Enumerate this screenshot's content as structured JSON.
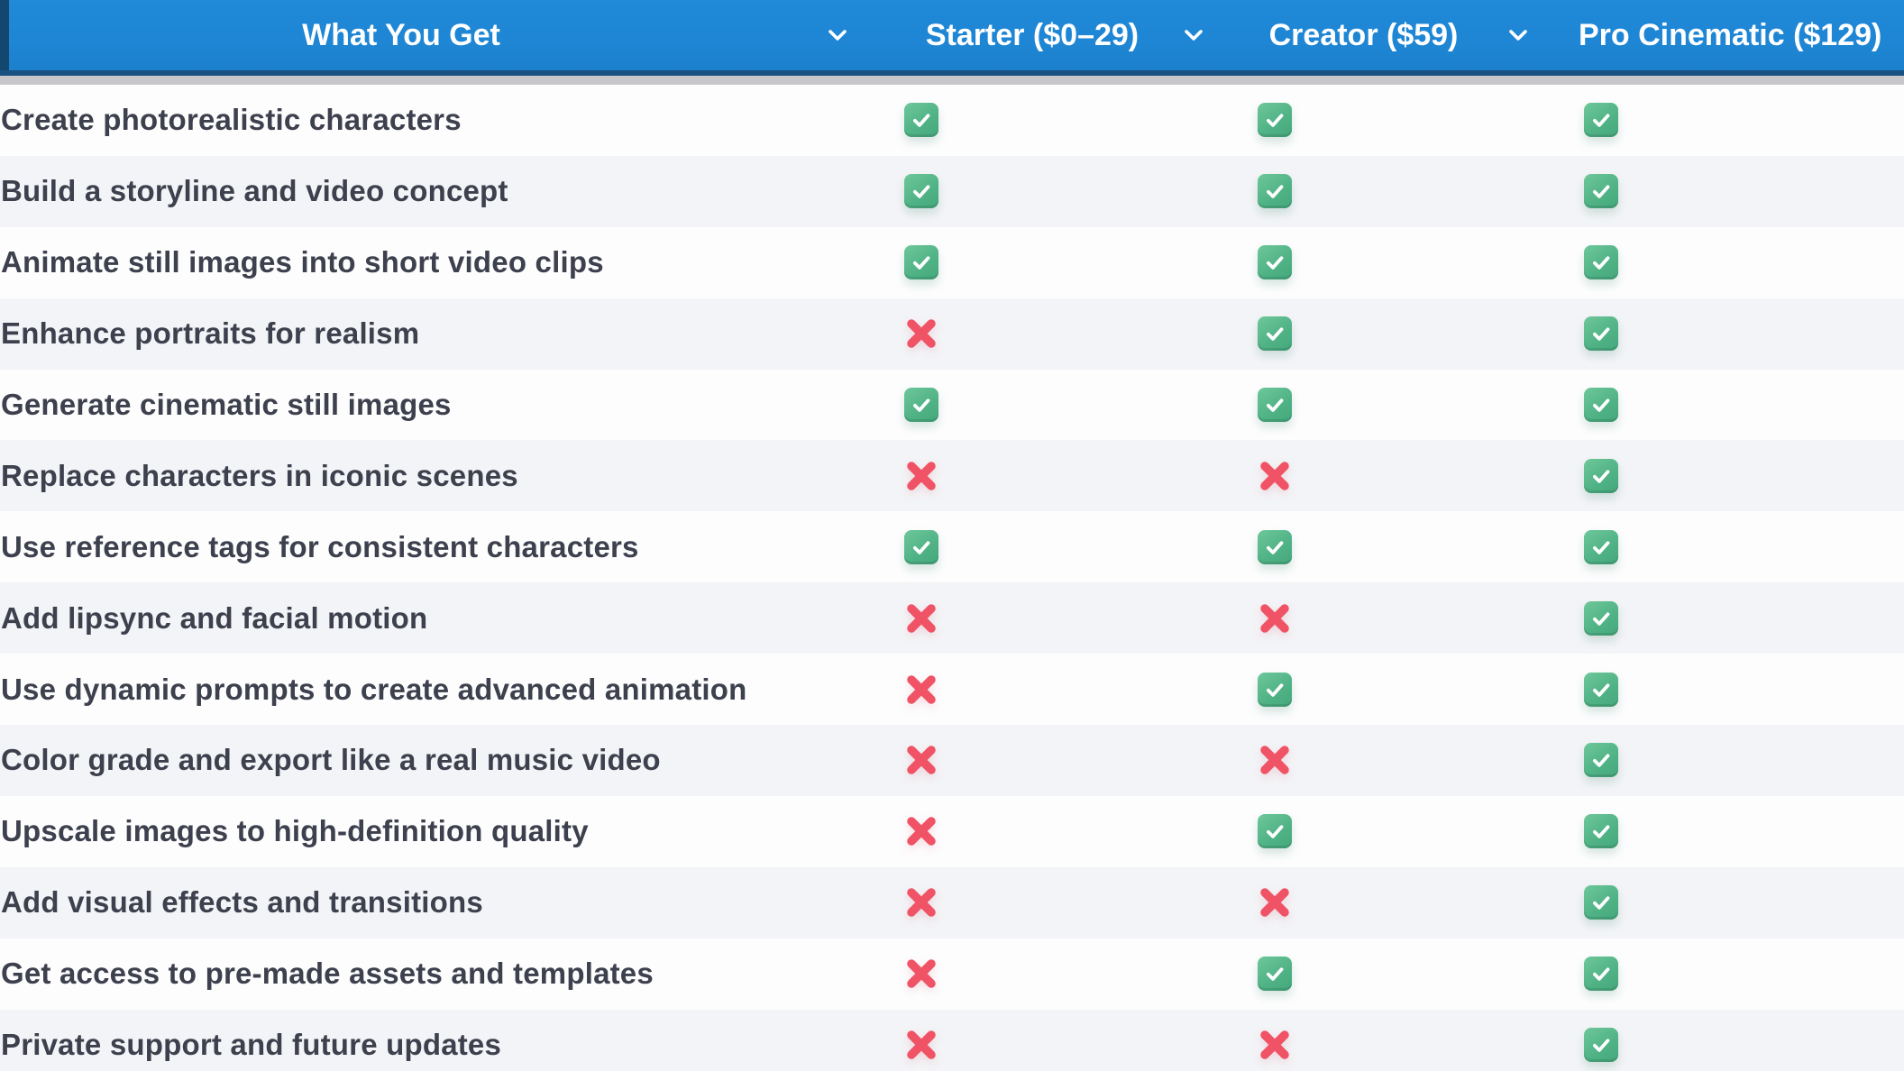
{
  "page": {
    "type": "pricing-feature-comparison-table"
  },
  "header": {
    "feature_column": {
      "label": "What You Get"
    },
    "plans": [
      {
        "id": "starter",
        "label": "Starter ($0–29)"
      },
      {
        "id": "creator",
        "label": "Creator ($59)"
      },
      {
        "id": "pro",
        "label": "Pro Cinematic ($129)"
      }
    ]
  },
  "rows": [
    {
      "feature": "Create photorealistic characters",
      "starter": true,
      "creator": true,
      "pro": true
    },
    {
      "feature": "Build a storyline and video concept",
      "starter": true,
      "creator": true,
      "pro": true
    },
    {
      "feature": "Animate still images into short video clips",
      "starter": true,
      "creator": true,
      "pro": true
    },
    {
      "feature": "Enhance portraits for realism",
      "starter": false,
      "creator": true,
      "pro": true
    },
    {
      "feature": "Generate cinematic still images",
      "starter": true,
      "creator": true,
      "pro": true
    },
    {
      "feature": "Replace characters in iconic scenes",
      "starter": false,
      "creator": false,
      "pro": true
    },
    {
      "feature": "Use reference tags for consistent characters",
      "starter": true,
      "creator": true,
      "pro": true
    },
    {
      "feature": "Add lipsync and facial motion",
      "starter": false,
      "creator": false,
      "pro": true
    },
    {
      "feature": "Use dynamic prompts to create advanced animation",
      "starter": false,
      "creator": true,
      "pro": true
    },
    {
      "feature": "Color grade and export like a real music video",
      "starter": false,
      "creator": false,
      "pro": true
    },
    {
      "feature": "Upscale images to high-definition quality",
      "starter": false,
      "creator": true,
      "pro": true
    },
    {
      "feature": "Add visual effects and transitions",
      "starter": false,
      "creator": false,
      "pro": true
    },
    {
      "feature": "Get access to pre-made assets and templates",
      "starter": false,
      "creator": true,
      "pro": true
    },
    {
      "feature": "Private support and future updates",
      "starter": false,
      "creator": false,
      "pro": true
    }
  ],
  "icons": {
    "included": "check-icon",
    "not_included": "cross-icon",
    "header_dropdown": "chevron-down-icon"
  },
  "colors": {
    "header_bg": "#1e86d4",
    "header_bottom_edge": "#1a5181",
    "header_left_edge": "#14476f",
    "header_shadow": "#c7c7cb",
    "header_text": "#ffffff",
    "row_bg": "#fdfdfe",
    "row_alt_bg": "#f3f4f7",
    "feature_text": "#3d404d",
    "check_green": "#55b98b",
    "cross_red": "#f05366"
  }
}
